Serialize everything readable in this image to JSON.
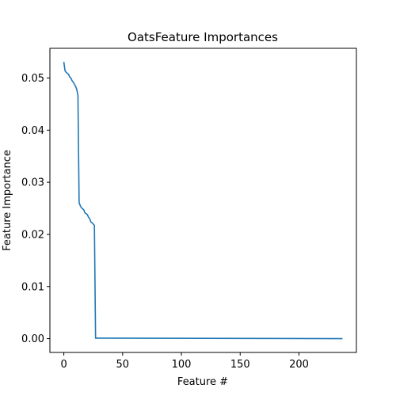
{
  "chart_data": {
    "type": "line",
    "title": "OatsFeature Importances",
    "xlabel": "Feature #",
    "ylabel": "Feature Importance",
    "xlim": [
      -11.85,
      248.85
    ],
    "ylim": [
      -0.00265,
      0.0557
    ],
    "xticks": [
      0,
      50,
      100,
      150,
      200
    ],
    "yticks": [
      0.0,
      0.01,
      0.02,
      0.03,
      0.04,
      0.05
    ],
    "ytick_labels": [
      "0.00",
      "0.01",
      "0.02",
      "0.03",
      "0.04",
      "0.05"
    ],
    "grid": false,
    "color": "#1f77b4",
    "series": [
      {
        "x": [
          0,
          1,
          2,
          3,
          4,
          5,
          6,
          7,
          8,
          9,
          10,
          11,
          12,
          13,
          14,
          15,
          16,
          17,
          18,
          19,
          20,
          21,
          22,
          23,
          24,
          25,
          26,
          27,
          28,
          237
        ],
        "values": [
          0.0531,
          0.0514,
          0.0511,
          0.0509,
          0.0507,
          0.0502,
          0.05,
          0.0495,
          0.0492,
          0.0488,
          0.0484,
          0.0478,
          0.0467,
          0.0261,
          0.0255,
          0.0251,
          0.0249,
          0.0247,
          0.0241,
          0.024,
          0.0238,
          0.0233,
          0.023,
          0.0224,
          0.0222,
          0.022,
          0.0217,
          0.0001,
          0.0001,
          0.0
        ]
      }
    ]
  }
}
